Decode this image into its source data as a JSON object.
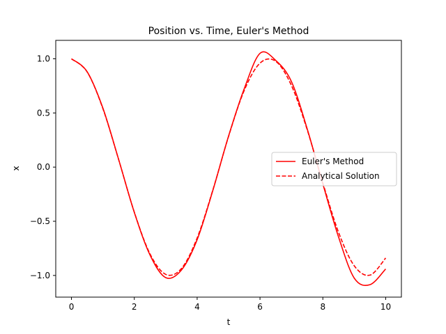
{
  "chart_data": {
    "type": "line",
    "title": "Position vs. Time, Euler's Method",
    "xlabel": "t",
    "ylabel": "x",
    "xlim": [
      -0.5,
      10.5
    ],
    "ylim": [
      -1.2,
      1.17
    ],
    "xticks": [
      0,
      2,
      4,
      6,
      8,
      10
    ],
    "xtick_labels": [
      "0",
      "2",
      "4",
      "6",
      "8",
      "10"
    ],
    "yticks": [
      -1.0,
      -0.5,
      0.0,
      0.5,
      1.0
    ],
    "ytick_labels": [
      "−1.0",
      "−0.5",
      "0.0",
      "0.5",
      "1.0"
    ],
    "grid": false,
    "legend_position": "center-right",
    "x": [
      0,
      0.5,
      1,
      1.5,
      2,
      2.5,
      3,
      3.5,
      4,
      4.5,
      5,
      5.5,
      6,
      6.5,
      7,
      7.5,
      8,
      8.5,
      9,
      9.5,
      10
    ],
    "series": [
      {
        "name": "Euler's Method",
        "color": "#ff0000",
        "style": "solid",
        "values": [
          1.0,
          0.88,
          0.545,
          0.072,
          -0.418,
          -0.812,
          -1.02,
          -0.95,
          -0.67,
          -0.215,
          0.287,
          0.725,
          1.05,
          0.985,
          0.79,
          0.355,
          -0.155,
          -0.645,
          -1.025,
          -1.085,
          -0.94
        ]
      },
      {
        "name": "Analytical Solution",
        "color": "#ff0000",
        "style": "dashed",
        "values": [
          1.0,
          0.878,
          0.54,
          0.071,
          -0.416,
          -0.801,
          -0.99,
          -0.936,
          -0.654,
          -0.211,
          0.284,
          0.709,
          0.96,
          0.977,
          0.754,
          0.347,
          -0.146,
          -0.602,
          -0.911,
          -0.997,
          -0.839
        ]
      }
    ]
  }
}
